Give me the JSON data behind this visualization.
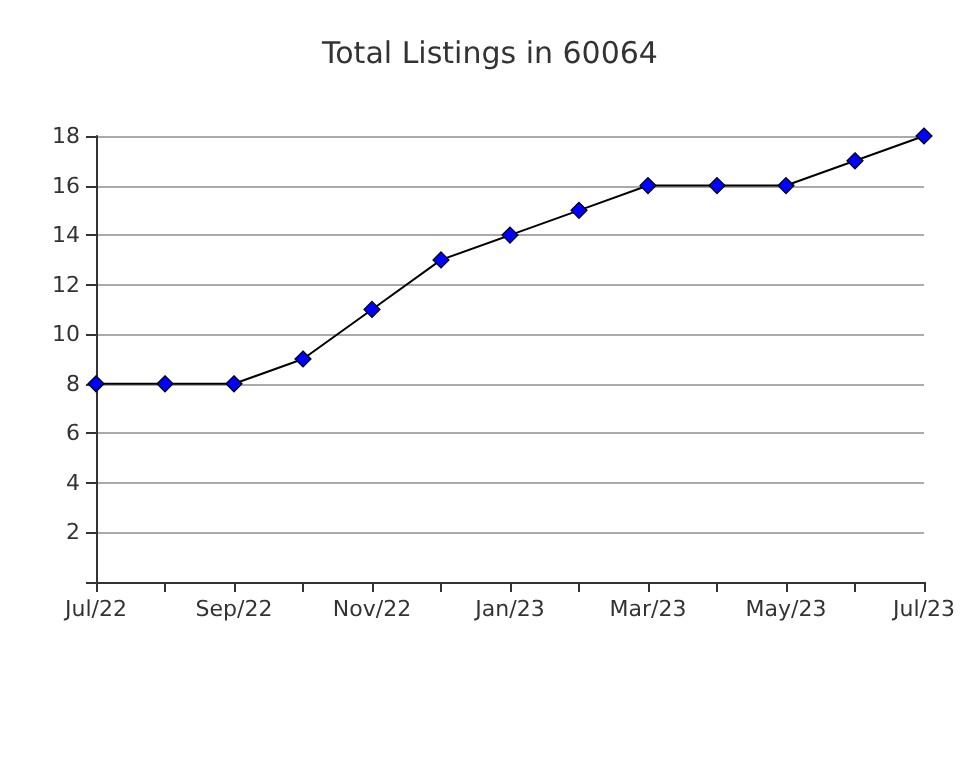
{
  "chart_data": {
    "type": "line",
    "title": "Total Listings in 60064",
    "categories": [
      "Jul/22",
      null,
      "Sep/22",
      null,
      "Nov/22",
      null,
      "Jan/23",
      null,
      "Mar/23",
      null,
      "May/23",
      null,
      "Jul/23"
    ],
    "series": [
      {
        "color": "#0000ff",
        "values": [
          8,
          8,
          8,
          9,
          11,
          13,
          14,
          15,
          16,
          16,
          16,
          17,
          18
        ]
      }
    ],
    "ylim": [
      0,
      18
    ],
    "yticks": [
      {
        "value": 0,
        "label": null
      },
      2,
      4,
      6,
      8,
      10,
      12,
      14,
      16,
      18
    ],
    "grid": "y",
    "marker": "diamond",
    "line_style": "solid"
  }
}
